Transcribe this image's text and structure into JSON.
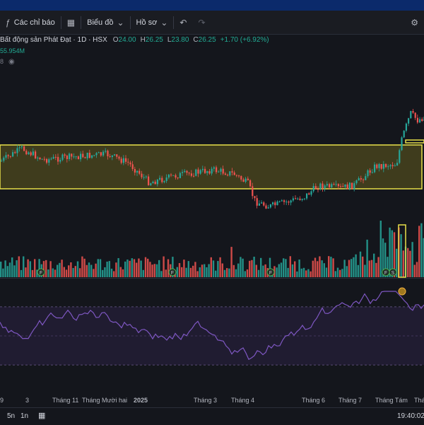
{
  "toolbar": {
    "indicators_label": "Các chỉ báo",
    "chart_label": "Biểu đồ",
    "profile_label": "Hồ sơ"
  },
  "legend": {
    "symbol": "Bất động sản Phát Đạt · 1D · HSX",
    "o_label": "O",
    "o_value": "24.00",
    "h_label": "H",
    "h_value": "26.25",
    "l_label": "L",
    "l_value": "23.80",
    "c_label": "C",
    "c_value": "26.25",
    "change": "+1.70 (+6.92%)",
    "volume": "55.954M",
    "small_num": "8"
  },
  "time_axis": [
    "9",
    "3",
    "Tháng 11",
    "Tháng Mười hai",
    "2025",
    "Tháng 3",
    "Tháng 4",
    "Tháng 6",
    "Tháng 7",
    "Tháng Tám",
    "Tháng"
  ],
  "bottom": {
    "range_5d": "5n",
    "range_1m": "1n",
    "time": "19:40:02"
  },
  "markers": [
    "F",
    "F",
    "F",
    "F",
    "S"
  ],
  "colors": {
    "up": "#26a69a",
    "down": "#ef5350",
    "box_border": "#e8e04a",
    "box_fill": "#4d4a1e",
    "rsi_line": "#7e57c2",
    "rsi_band": "#2a2343"
  }
}
